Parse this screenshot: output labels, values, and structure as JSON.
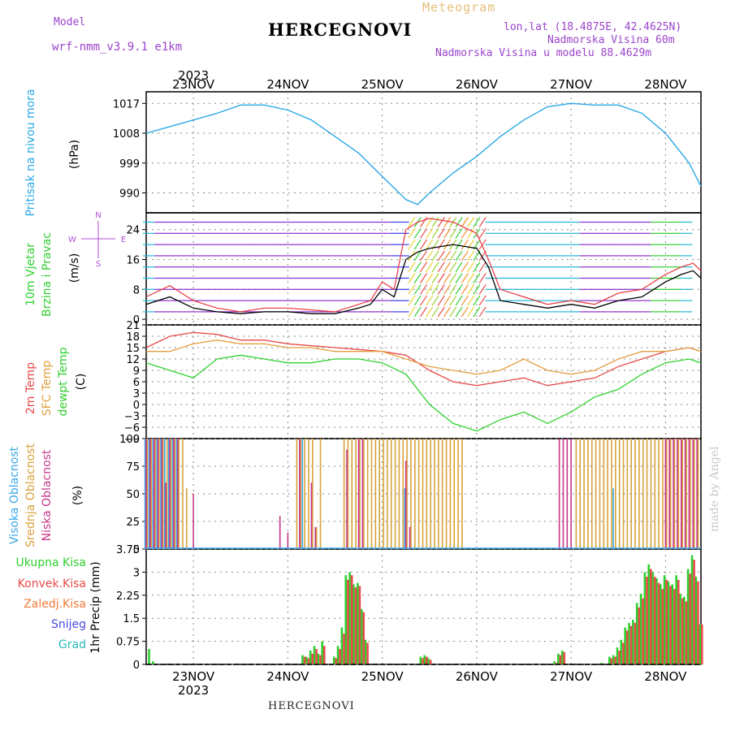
{
  "header": {
    "model_label": "Model",
    "model_name": "wrf-nmm_v3.9.1 e1km",
    "title": "HERCEGNOVI",
    "product": "Meteogram",
    "coords": "lon,lat (18.4875E, 42.4625N)",
    "elevation": "Nadmorska Visina 60m",
    "model_elevation": "Nadmorska Visina u modelu 88.4629m"
  },
  "footer": {
    "station": "HERCEGNOVI",
    "credit": "made by Angel"
  },
  "colors": {
    "pressure": "#2aa8e6",
    "wind_speed": "#000000",
    "gust": "#e8373d",
    "temp2m": "#e84a4a",
    "sfc_temp": "#e3a040",
    "dewpt": "#2fd12f",
    "cloud_high": "#3aa7e8",
    "cloud_mid": "#d9a23a",
    "cloud_low": "#c7368a",
    "precip_total": "#2fcf2f",
    "precip_conv": "#e84a4a",
    "precip_frozen": "#f07a3a",
    "snow": "#4a4ae0",
    "hail": "#2ab8b8",
    "label_wind_purple": "#b14fd6"
  },
  "chart_data": [
    {
      "type": "line",
      "panel": "pressure",
      "ylabel_lines": [
        "Pritisak na nivou mora",
        "(hPa)"
      ],
      "y_ticks": [
        990,
        999,
        1008,
        1017
      ],
      "ylim": [
        984,
        1020.5
      ],
      "xlim": [
        0,
        141
      ],
      "x_ticks": [
        {
          "label": "23NOV",
          "x": 12
        },
        {
          "label": "24NOV",
          "x": 36
        },
        {
          "label": "25NOV",
          "x": 60
        },
        {
          "label": "26NOV",
          "x": 84
        },
        {
          "label": "27NOV",
          "x": 108
        },
        {
          "label": "28NOV",
          "x": 132
        }
      ],
      "year_label": "2023",
      "x_hours": [
        0,
        6,
        12,
        18,
        24,
        30,
        36,
        42,
        48,
        54,
        60,
        66,
        69,
        72,
        78,
        84,
        90,
        96,
        102,
        108,
        114,
        120,
        126,
        132,
        138,
        141
      ],
      "series": [
        {
          "values": [
            1008,
            1010,
            1012,
            1014,
            1016.5,
            1016.5,
            1015,
            1012,
            1007,
            1002,
            995,
            988,
            986.5,
            990,
            996,
            1001,
            1007,
            1012,
            1016,
            1017,
            1016.5,
            1016.5,
            1014,
            1008,
            999,
            992
          ]
        }
      ]
    },
    {
      "type": "line",
      "panel": "wind",
      "ylabel_lines": [
        "10m Vjetar",
        "Brzina i Pravac",
        "(m/s)"
      ],
      "direction_legend": [
        "N",
        "E",
        "W",
        "S"
      ],
      "y_ticks": [
        0,
        8,
        16,
        24
      ],
      "ylim": [
        -1.5,
        28.5
      ],
      "x_hours": [
        0,
        6,
        12,
        18,
        24,
        30,
        36,
        42,
        48,
        54,
        57,
        60,
        63,
        66,
        69,
        72,
        78,
        84,
        87,
        90,
        96,
        102,
        108,
        114,
        120,
        126,
        132,
        136,
        139,
        141
      ],
      "series": [
        {
          "name": "speed",
          "values": [
            4,
            6,
            3,
            2,
            1.5,
            2,
            2,
            1.5,
            1.5,
            3,
            4,
            8,
            6,
            16,
            18,
            19,
            20,
            19,
            14,
            5,
            4,
            3,
            4,
            3,
            5,
            6,
            10,
            12,
            13,
            11
          ]
        },
        {
          "name": "gust",
          "values": [
            6,
            9,
            5,
            3,
            2,
            3,
            3,
            2.5,
            2,
            4,
            5,
            10,
            8,
            24,
            26,
            27,
            26,
            23,
            16,
            8,
            6,
            4,
            5,
            4,
            7,
            8,
            12,
            14,
            15,
            13
          ]
        }
      ]
    },
    {
      "type": "line",
      "panel": "temperature",
      "ylabel_lines": [
        "2m Temp",
        "SFC Temp",
        "dewpt Temp",
        "(C)"
      ],
      "y_ticks": [
        -9,
        -6,
        -3,
        0,
        3,
        6,
        9,
        12,
        15,
        18,
        21
      ],
      "ylim": [
        -9,
        21
      ],
      "x_hours": [
        0,
        6,
        12,
        18,
        24,
        30,
        36,
        42,
        48,
        54,
        60,
        66,
        72,
        78,
        84,
        90,
        96,
        102,
        108,
        114,
        120,
        126,
        132,
        138,
        141
      ],
      "series": [
        {
          "name": "2m",
          "values": [
            15,
            18,
            19,
            18.5,
            17,
            17,
            16,
            15.5,
            15,
            14.5,
            14,
            13,
            9,
            6,
            5,
            6,
            7,
            5,
            6,
            7,
            10,
            12,
            14,
            15,
            14
          ]
        },
        {
          "name": "sfc",
          "values": [
            14,
            14,
            16,
            17,
            16,
            16,
            15,
            15,
            14,
            14,
            14,
            12,
            10,
            9,
            8,
            9,
            12,
            9,
            8,
            9,
            12,
            14,
            14,
            15,
            14
          ]
        },
        {
          "name": "dewpt",
          "values": [
            11,
            9,
            7,
            12,
            13,
            12,
            11,
            11,
            12,
            12,
            11,
            8,
            0,
            -5,
            -7,
            -4,
            -2,
            -5,
            -2,
            2,
            4,
            8,
            11,
            12,
            11
          ]
        }
      ]
    },
    {
      "type": "bar",
      "panel": "clouds",
      "ylabel_lines": [
        "Visoka Oblacnost",
        "Srednja Oblacnost",
        "Niska Oblacnost",
        "(%)"
      ],
      "y_ticks": [
        0,
        25,
        50,
        75,
        100
      ],
      "ylim": [
        0,
        100
      ],
      "x_hours": [
        0,
        1,
        2,
        3,
        4,
        5,
        6,
        7,
        8,
        9,
        10,
        11,
        12,
        14,
        34,
        36,
        38,
        39,
        40,
        41,
        42,
        43,
        44,
        45,
        46,
        48,
        50,
        51,
        52,
        53,
        54,
        55,
        56,
        57,
        58,
        59,
        60,
        61,
        62,
        63,
        64,
        65,
        66,
        67,
        68,
        69,
        70,
        71,
        72,
        73,
        74,
        75,
        76,
        77,
        78,
        79,
        80,
        105,
        106,
        107,
        108,
        109,
        110,
        111,
        112,
        113,
        114,
        115,
        116,
        117,
        118,
        119,
        120,
        121,
        122,
        123,
        124,
        125,
        126,
        127,
        128,
        129,
        130,
        131,
        132,
        133,
        134,
        135,
        136,
        137,
        138,
        139,
        140
      ],
      "series": [
        {
          "name": "high",
          "values": [
            100,
            100,
            100,
            100,
            100,
            100,
            100,
            100,
            100,
            0,
            0,
            0,
            0,
            0,
            0,
            0,
            0,
            0,
            100,
            0,
            0,
            0,
            0,
            0,
            0,
            0,
            0,
            0,
            0,
            0,
            0,
            0,
            0,
            0,
            0,
            0,
            0,
            0,
            0,
            0,
            0,
            0,
            55,
            0,
            0,
            0,
            0,
            0,
            0,
            0,
            0,
            0,
            0,
            0,
            0,
            0,
            0,
            0,
            0,
            0,
            0,
            0,
            0,
            0,
            0,
            0,
            0,
            0,
            0,
            0,
            0,
            55,
            0,
            0,
            0,
            0,
            0,
            0,
            0,
            0,
            0,
            0,
            0,
            0,
            0,
            0,
            0,
            0,
            0,
            0,
            0,
            0,
            0
          ]
        },
        {
          "name": "mid",
          "values": [
            100,
            100,
            100,
            100,
            100,
            100,
            100,
            100,
            100,
            100,
            55,
            0,
            0,
            0,
            0,
            0,
            100,
            100,
            100,
            100,
            100,
            20,
            100,
            0,
            0,
            0,
            100,
            100,
            100,
            100,
            100,
            100,
            100,
            100,
            100,
            100,
            100,
            100,
            100,
            100,
            100,
            100,
            100,
            100,
            100,
            100,
            100,
            100,
            100,
            100,
            100,
            100,
            100,
            100,
            100,
            100,
            100,
            0,
            0,
            0,
            0,
            100,
            100,
            100,
            100,
            100,
            100,
            100,
            100,
            100,
            100,
            100,
            100,
            100,
            100,
            100,
            100,
            100,
            100,
            100,
            100,
            100,
            100,
            100,
            100,
            100,
            100,
            100,
            100,
            100,
            100,
            100,
            100
          ]
        },
        {
          "name": "low",
          "values": [
            100,
            100,
            100,
            100,
            100,
            60,
            100,
            100,
            100,
            0,
            0,
            0,
            50,
            0,
            30,
            15,
            0,
            100,
            0,
            0,
            60,
            20,
            0,
            0,
            0,
            0,
            0,
            90,
            0,
            0,
            100,
            100,
            0,
            0,
            0,
            0,
            0,
            0,
            0,
            0,
            0,
            0,
            80,
            20,
            0,
            0,
            0,
            0,
            0,
            0,
            0,
            0,
            0,
            0,
            0,
            0,
            0,
            100,
            100,
            100,
            100,
            0,
            0,
            0,
            0,
            0,
            0,
            0,
            0,
            0,
            0,
            0,
            0,
            0,
            0,
            0,
            0,
            0,
            0,
            0,
            0,
            0,
            0,
            0,
            100,
            100,
            100,
            100,
            100,
            100,
            100,
            100,
            100
          ]
        }
      ]
    },
    {
      "type": "bar",
      "panel": "precipitation",
      "ylabel_lines": [
        "Ukupna Kisa",
        "Konvek.Kisa",
        "Zaledj.Kisa",
        "Snijeg",
        "Grad",
        "1hr Precip (mm)"
      ],
      "y_ticks": [
        0,
        0.75,
        1.5,
        2.25,
        3,
        3.75
      ],
      "ylim": [
        0,
        3.75
      ],
      "x_hours": [
        1,
        2,
        40,
        41,
        42,
        43,
        44,
        45,
        48,
        49,
        50,
        51,
        52,
        53,
        54,
        55,
        56,
        70,
        71,
        72,
        104,
        105,
        106,
        116,
        118,
        119,
        120,
        121,
        122,
        123,
        124,
        125,
        126,
        127,
        128,
        129,
        130,
        131,
        132,
        133,
        134,
        135,
        136,
        137,
        138,
        139,
        140,
        141
      ],
      "series": [
        {
          "name": "total",
          "values": [
            0.5,
            0.1,
            0.3,
            0.25,
            0.45,
            0.6,
            0.35,
            0.75,
            0.25,
            0.6,
            1.2,
            2.9,
            3.0,
            2.6,
            2.65,
            1.8,
            0.8,
            0.25,
            0.3,
            0.2,
            0.1,
            0.35,
            0.45,
            0.05,
            0.25,
            0.3,
            0.55,
            0.8,
            1.2,
            1.35,
            1.45,
            2.0,
            2.3,
            3.0,
            3.25,
            3.0,
            2.8,
            2.6,
            2.9,
            2.7,
            2.6,
            2.9,
            2.3,
            2.2,
            3.1,
            3.55,
            2.85,
            1.3
          ]
        },
        {
          "name": "conv",
          "values": [
            0,
            0,
            0.25,
            0.2,
            0.35,
            0.5,
            0.3,
            0.6,
            0.2,
            0.5,
            1.0,
            2.75,
            2.9,
            2.5,
            2.55,
            1.7,
            0.7,
            0.2,
            0.25,
            0.15,
            0.05,
            0.3,
            0.4,
            0,
            0.2,
            0.25,
            0.45,
            0.7,
            1.1,
            1.25,
            1.35,
            1.85,
            2.15,
            2.85,
            3.1,
            2.85,
            2.65,
            2.45,
            2.75,
            2.55,
            2.45,
            2.75,
            2.15,
            2.05,
            2.95,
            3.4,
            2.7,
            1.3
          ]
        }
      ]
    }
  ]
}
